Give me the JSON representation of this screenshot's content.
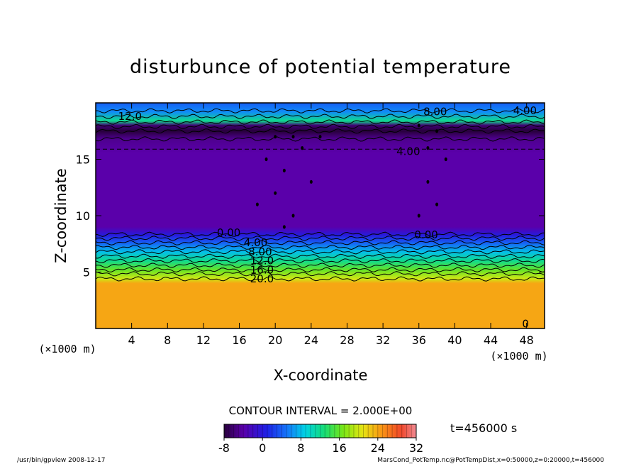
{
  "chart_data": {
    "type": "heatmap",
    "title": "disturbunce of potential temperature",
    "xlabel": "X-coordinate",
    "ylabel": "Z-coordinate",
    "x_unit": "(×1000 m)",
    "z_unit": "(×1000 m)",
    "xlim": [
      0,
      50
    ],
    "ylim": [
      0,
      20
    ],
    "x_ticks": [
      4,
      8,
      12,
      16,
      20,
      24,
      28,
      32,
      36,
      40,
      44,
      48
    ],
    "y_ticks": [
      5,
      10,
      15
    ],
    "colorbar": {
      "min": -8,
      "max": 32,
      "ticks": [
        -8,
        0,
        8,
        16,
        24,
        32
      ],
      "colormap": "rainbow"
    },
    "contour_interval": "CONTOUR INTERVAL = 2.000E+00",
    "time_label": "t=456000 s",
    "contour_labels": [
      "12.0",
      "0.00",
      "4.00",
      "8.00",
      "12.0",
      "16.0",
      "20.0",
      "0.00",
      "4.00",
      "8.00",
      "0",
      "4.00"
    ],
    "field_profile": [
      {
        "z": 0,
        "value": 24
      },
      {
        "z": 4.0,
        "value": 24
      },
      {
        "z": 4.4,
        "value": 20
      },
      {
        "z": 5.2,
        "value": 16
      },
      {
        "z": 6.0,
        "value": 12
      },
      {
        "z": 6.8,
        "value": 8
      },
      {
        "z": 7.6,
        "value": 4
      },
      {
        "z": 8.3,
        "value": 0
      },
      {
        "z": 9.0,
        "value": -4
      },
      {
        "z": 15.5,
        "value": -4
      },
      {
        "z": 16.8,
        "value": -5
      },
      {
        "z": 17.5,
        "value": -8
      },
      {
        "z": 18.0,
        "value": -6
      },
      {
        "z": 18.4,
        "value": 12
      },
      {
        "z": 19.2,
        "value": 6
      },
      {
        "z": 20,
        "value": 4
      }
    ]
  },
  "footer": {
    "left": "/usr/bin/gpview   2008-12-17",
    "right": "MarsCond_PotTemp.nc@PotTempDist,x=0:50000,z=0:20000,t=456000"
  }
}
